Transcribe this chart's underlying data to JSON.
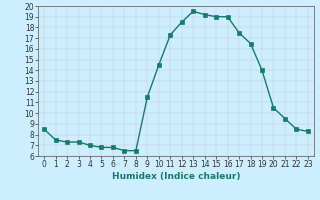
{
  "x": [
    0,
    1,
    2,
    3,
    4,
    5,
    6,
    7,
    8,
    9,
    10,
    11,
    12,
    13,
    14,
    15,
    16,
    17,
    18,
    19,
    20,
    21,
    22,
    23
  ],
  "y": [
    8.5,
    7.5,
    7.3,
    7.3,
    7.0,
    6.8,
    6.8,
    6.5,
    6.5,
    11.5,
    14.5,
    17.3,
    18.5,
    19.5,
    19.2,
    19.0,
    19.0,
    17.5,
    16.5,
    14.0,
    10.5,
    9.5,
    8.5,
    8.3
  ],
  "line_color": "#1a7a6a",
  "marker": "s",
  "marker_size": 2.5,
  "bg_color": "#cceeff",
  "xlabel": "Humidex (Indice chaleur)",
  "ylim": [
    6,
    20
  ],
  "xlim": [
    -0.5,
    23.5
  ],
  "yticks": [
    6,
    7,
    8,
    9,
    10,
    11,
    12,
    13,
    14,
    15,
    16,
    17,
    18,
    19,
    20
  ],
  "xticks": [
    0,
    1,
    2,
    3,
    4,
    5,
    6,
    7,
    8,
    9,
    10,
    11,
    12,
    13,
    14,
    15,
    16,
    17,
    18,
    19,
    20,
    21,
    22,
    23
  ],
  "tick_fontsize": 5.5,
  "xlabel_fontsize": 6.5,
  "grid_color": "#bbdddd",
  "grid_linewidth": 0.4,
  "line_width": 1.0
}
